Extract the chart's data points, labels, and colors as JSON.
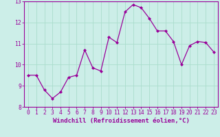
{
  "x": [
    0,
    1,
    2,
    3,
    4,
    5,
    6,
    7,
    8,
    9,
    10,
    11,
    12,
    13,
    14,
    15,
    16,
    17,
    18,
    19,
    20,
    21,
    22,
    23
  ],
  "y": [
    9.5,
    9.5,
    8.8,
    8.4,
    8.7,
    9.4,
    9.5,
    10.7,
    9.85,
    9.7,
    11.3,
    11.05,
    12.5,
    12.85,
    12.7,
    12.2,
    11.6,
    11.6,
    11.1,
    10.0,
    10.9,
    11.1,
    11.05,
    10.6
  ],
  "line_color": "#990099",
  "marker": "D",
  "marker_size": 2.0,
  "bg_color": "#cceee8",
  "grid_color": "#aaddcc",
  "xlabel": "Windchill (Refroidissement éolien,°C)",
  "ylabel": "",
  "ylim": [
    8,
    13
  ],
  "xlim_min": -0.5,
  "xlim_max": 23.5,
  "yticks": [
    8,
    9,
    10,
    11,
    12,
    13
  ],
  "xticks": [
    0,
    1,
    2,
    3,
    4,
    5,
    6,
    7,
    8,
    9,
    10,
    11,
    12,
    13,
    14,
    15,
    16,
    17,
    18,
    19,
    20,
    21,
    22,
    23
  ],
  "xlabel_color": "#990099",
  "tick_color": "#990099",
  "spine_color": "#990099",
  "label_fontsize": 6.5,
  "tick_fontsize": 5.8
}
